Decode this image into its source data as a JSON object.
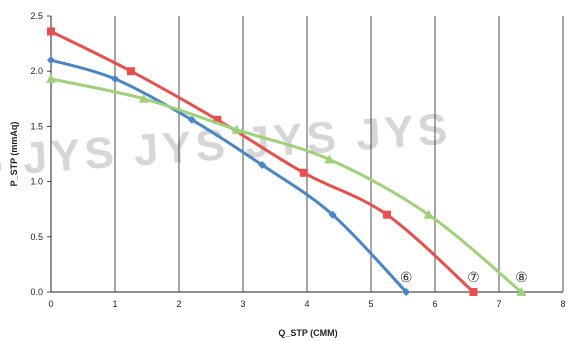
{
  "chart_data": {
    "type": "line",
    "title": "",
    "xlabel": "Q_STP (CMM)",
    "ylabel": "P_STP (mmAq)",
    "xlim": [
      0,
      8
    ],
    "ylim": [
      0,
      2.5
    ],
    "x_ticks": [
      "0",
      "1",
      "2",
      "3",
      "4",
      "5",
      "6",
      "7",
      "8"
    ],
    "y_ticks": [
      "0.0",
      "0.5",
      "1.0",
      "1.5",
      "2.0",
      "2.5"
    ],
    "grid": "vertical",
    "legend": "none",
    "watermark": "JYS JYS JYS JYS JYS",
    "series": [
      {
        "label": "⑥",
        "color": "#4a86c6",
        "marker": "diamond",
        "x": [
          0,
          1.0,
          2.2,
          3.3,
          4.4,
          5.55
        ],
        "y": [
          2.1,
          1.93,
          1.56,
          1.15,
          0.7,
          0.0
        ]
      },
      {
        "label": "⑦",
        "color": "#e8504f",
        "marker": "square",
        "x": [
          0,
          1.25,
          2.6,
          3.95,
          5.25,
          6.6
        ],
        "y": [
          2.36,
          2.0,
          1.56,
          1.08,
          0.7,
          0.0
        ]
      },
      {
        "label": "⑧",
        "color": "#9fd07a",
        "marker": "triangle",
        "x": [
          0,
          1.45,
          2.9,
          4.35,
          5.9,
          7.35
        ],
        "y": [
          1.93,
          1.75,
          1.47,
          1.2,
          0.7,
          0.0
        ]
      }
    ]
  }
}
